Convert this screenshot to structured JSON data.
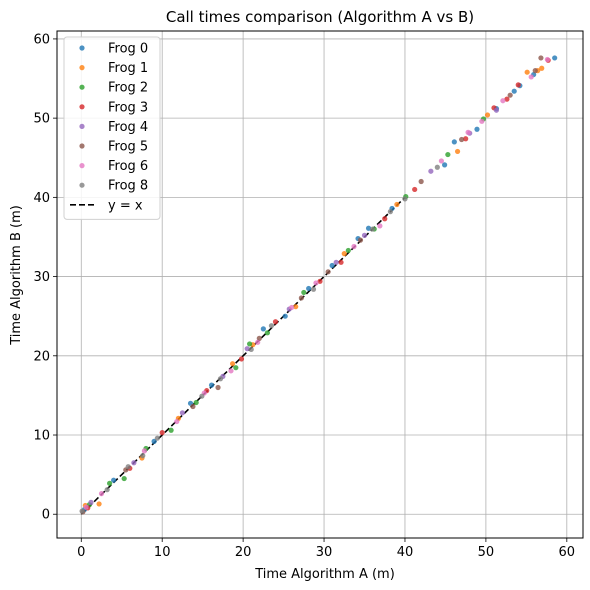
{
  "chart_data": {
    "type": "scatter",
    "title": "Call times comparison (Algorithm A vs B)",
    "xlabel": "Time Algorithm A (m)",
    "ylabel": "Time Algorithm B (m)",
    "xlim": [
      -3,
      62
    ],
    "ylim": [
      -3,
      61
    ],
    "xticks": [
      0,
      10,
      20,
      30,
      40,
      50,
      60
    ],
    "yticks": [
      0,
      10,
      20,
      30,
      40,
      50,
      60
    ],
    "grid": true,
    "legend_position": "top-left",
    "reference_line": {
      "name": "y = x",
      "style": "dashed",
      "color": "#000000",
      "x": [
        0,
        40
      ]
    },
    "series": [
      {
        "name": "Frog 0",
        "color": "#1f77b4",
        "points": [
          [
            0.4,
            0.6
          ],
          [
            4.0,
            4.3
          ],
          [
            9.0,
            9.2
          ],
          [
            13.5,
            14.0
          ],
          [
            16.1,
            16.3
          ],
          [
            22.5,
            23.4
          ],
          [
            25.2,
            25.0
          ],
          [
            28.1,
            28.5
          ],
          [
            31.0,
            31.4
          ],
          [
            34.2,
            34.8
          ],
          [
            35.5,
            36.1
          ],
          [
            38.4,
            38.6
          ],
          [
            44.9,
            44.1
          ],
          [
            46.1,
            47.0
          ],
          [
            48.9,
            48.6
          ],
          [
            51.3,
            51.2
          ],
          [
            53.5,
            53.4
          ],
          [
            54.2,
            54.1
          ],
          [
            55.9,
            55.5
          ],
          [
            58.5,
            57.6
          ]
        ]
      },
      {
        "name": "Frog 1",
        "color": "#ff7f0e",
        "points": [
          [
            0.5,
            1.1
          ],
          [
            2.2,
            1.3
          ],
          [
            7.5,
            7.1
          ],
          [
            12.0,
            12.1
          ],
          [
            18.7,
            19.0
          ],
          [
            21.2,
            21.4
          ],
          [
            26.5,
            26.2
          ],
          [
            32.5,
            32.9
          ],
          [
            39.0,
            39.1
          ],
          [
            46.5,
            45.8
          ],
          [
            50.2,
            50.4
          ],
          [
            55.1,
            55.8
          ],
          [
            56.4,
            56.0
          ],
          [
            56.9,
            56.3
          ]
        ]
      },
      {
        "name": "Frog 2",
        "color": "#2ca02c",
        "points": [
          [
            1.0,
            1.2
          ],
          [
            3.5,
            3.9
          ],
          [
            5.3,
            4.5
          ],
          [
            8.0,
            8.3
          ],
          [
            11.1,
            10.6
          ],
          [
            14.2,
            14.1
          ],
          [
            19.1,
            18.5
          ],
          [
            20.8,
            21.5
          ],
          [
            23.0,
            22.9
          ],
          [
            27.5,
            28.0
          ],
          [
            33.0,
            33.3
          ],
          [
            36.2,
            36.0
          ],
          [
            40.1,
            40.1
          ],
          [
            45.3,
            45.4
          ],
          [
            49.7,
            49.9
          ]
        ]
      },
      {
        "name": "Frog 3",
        "color": "#d62728",
        "points": [
          [
            0.8,
            0.8
          ],
          [
            6.0,
            5.8
          ],
          [
            10.0,
            10.3
          ],
          [
            15.5,
            15.6
          ],
          [
            19.8,
            19.6
          ],
          [
            24.0,
            24.3
          ],
          [
            29.5,
            29.4
          ],
          [
            32.1,
            31.8
          ],
          [
            37.5,
            37.3
          ],
          [
            41.2,
            41.0
          ],
          [
            47.5,
            47.4
          ],
          [
            51.0,
            51.3
          ],
          [
            52.6,
            52.4
          ],
          [
            54.0,
            54.2
          ],
          [
            57.7,
            57.3
          ]
        ]
      },
      {
        "name": "Frog 4",
        "color": "#9467bd",
        "points": [
          [
            1.2,
            1.5
          ],
          [
            6.5,
            6.5
          ],
          [
            12.5,
            12.8
          ],
          [
            17.5,
            17.4
          ],
          [
            20.5,
            20.9
          ],
          [
            25.7,
            25.9
          ],
          [
            31.5,
            31.8
          ],
          [
            35.0,
            35.2
          ],
          [
            43.2,
            43.3
          ],
          [
            48.0,
            48.1
          ],
          [
            51.3,
            51.0
          ]
        ]
      },
      {
        "name": "Frog 5",
        "color": "#8c564b",
        "points": [
          [
            0.2,
            0.3
          ],
          [
            5.5,
            5.6
          ],
          [
            13.8,
            13.6
          ],
          [
            16.9,
            16.0
          ],
          [
            22.0,
            22.2
          ],
          [
            27.2,
            27.3
          ],
          [
            30.5,
            30.6
          ],
          [
            34.5,
            34.6
          ],
          [
            42.0,
            42.0
          ],
          [
            47.0,
            47.3
          ],
          [
            53.0,
            52.9
          ],
          [
            56.1,
            56.0
          ],
          [
            56.8,
            57.6
          ]
        ]
      },
      {
        "name": "Frog 6",
        "color": "#e377c2",
        "points": [
          [
            0.6,
            0.9
          ],
          [
            2.5,
            2.6
          ],
          [
            7.8,
            8.0
          ],
          [
            11.8,
            11.7
          ],
          [
            15.2,
            15.3
          ],
          [
            18.5,
            18.1
          ],
          [
            21.8,
            21.7
          ],
          [
            26.0,
            26.1
          ],
          [
            29.0,
            29.2
          ],
          [
            33.7,
            33.8
          ],
          [
            36.9,
            36.4
          ],
          [
            44.5,
            44.6
          ],
          [
            47.8,
            48.2
          ],
          [
            49.5,
            49.6
          ],
          [
            52.1,
            52.2
          ],
          [
            55.6,
            55.2
          ],
          [
            57.6,
            57.4
          ]
        ]
      },
      {
        "name": "Frog 8",
        "color": "#7f7f7f",
        "points": [
          [
            0.1,
            0.4
          ],
          [
            3.2,
            3.1
          ],
          [
            5.8,
            6.0
          ],
          [
            7.6,
            7.4
          ],
          [
            9.4,
            9.6
          ],
          [
            14.9,
            14.9
          ],
          [
            17.2,
            17.1
          ],
          [
            21.0,
            20.8
          ],
          [
            23.5,
            23.8
          ],
          [
            28.7,
            28.4
          ],
          [
            36.0,
            36.0
          ],
          [
            38.2,
            38.2
          ],
          [
            40.0,
            39.8
          ],
          [
            44.0,
            43.8
          ]
        ]
      }
    ]
  }
}
